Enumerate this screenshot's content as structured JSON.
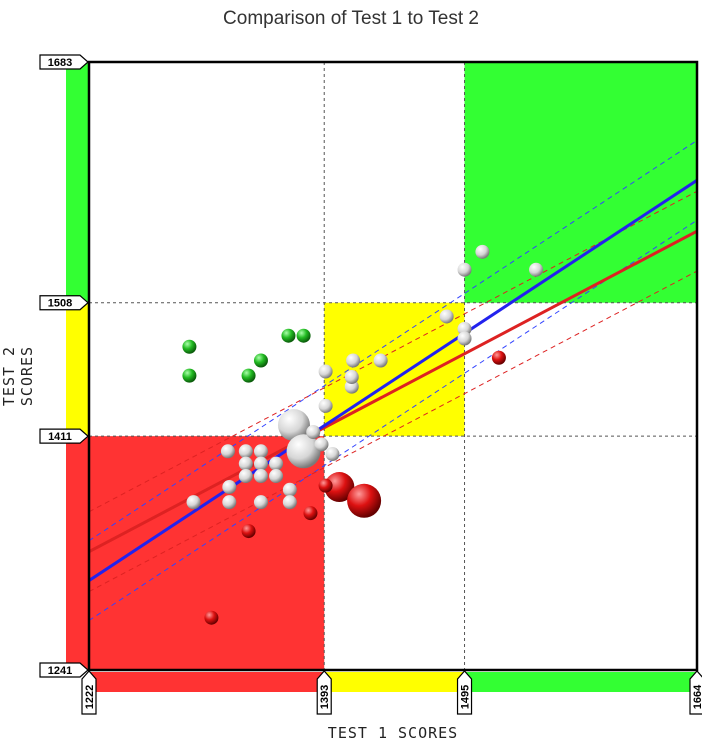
{
  "chart_data": {
    "type": "scatter",
    "title": "Comparison of Test 1 to Test 2",
    "xlabel": "TEST 1 SCORES",
    "ylabel": "TEST 2 SCORES",
    "xlim": [
      1222,
      1664
    ],
    "ylim": [
      1241,
      1683
    ],
    "x_ticks": [
      1222,
      1393,
      1495,
      1664
    ],
    "y_ticks": [
      1241,
      1411,
      1508,
      1683
    ],
    "grid": "dashed at thresholds",
    "zones": [
      {
        "x": [
          1222,
          1393
        ],
        "y": [
          1241,
          1411
        ],
        "color": "#ff3333"
      },
      {
        "x": [
          1393,
          1495
        ],
        "y": [
          1411,
          1508
        ],
        "color": "#ffff00"
      },
      {
        "x": [
          1495,
          1664
        ],
        "y": [
          1508,
          1683
        ],
        "color": "#33ff33"
      }
    ],
    "x_band": [
      {
        "x": [
          1222,
          1393
        ],
        "color": "#ff3333"
      },
      {
        "x": [
          1393,
          1495
        ],
        "color": "#ffff00"
      },
      {
        "x": [
          1495,
          1664
        ],
        "color": "#33ff33"
      }
    ],
    "y_band": [
      {
        "y": [
          1241,
          1411
        ],
        "color": "#ff3333"
      },
      {
        "y": [
          1411,
          1508
        ],
        "color": "#ffff00"
      },
      {
        "y": [
          1508,
          1683
        ],
        "color": "#33ff33"
      }
    ],
    "trend_lines": [
      {
        "color": "#2222ee",
        "x": [
          1222,
          1664
        ],
        "y": [
          1306,
          1597
        ]
      },
      {
        "color": "#dd2222",
        "x": [
          1222,
          1664
        ],
        "y": [
          1327,
          1560
        ]
      }
    ],
    "confidence_bands": [
      {
        "color": "#3344ff",
        "offset": 29
      },
      {
        "color": "#dd2222",
        "offset": 29
      }
    ],
    "points": [
      {
        "x": 1295,
        "y": 1476,
        "r": 7,
        "c": "green"
      },
      {
        "x": 1295,
        "y": 1455,
        "r": 7,
        "c": "green"
      },
      {
        "x": 1338,
        "y": 1455,
        "r": 7,
        "c": "green"
      },
      {
        "x": 1347,
        "y": 1466,
        "r": 7,
        "c": "green"
      },
      {
        "x": 1367,
        "y": 1484,
        "r": 7,
        "c": "green"
      },
      {
        "x": 1378,
        "y": 1484,
        "r": 7,
        "c": "green"
      },
      {
        "x": 1394,
        "y": 1458,
        "r": 7,
        "c": "white"
      },
      {
        "x": 1414,
        "y": 1466,
        "r": 7,
        "c": "white"
      },
      {
        "x": 1434,
        "y": 1466,
        "r": 7,
        "c": "white"
      },
      {
        "x": 1413,
        "y": 1447,
        "r": 7,
        "c": "white"
      },
      {
        "x": 1413,
        "y": 1454,
        "r": 7,
        "c": "white"
      },
      {
        "x": 1394,
        "y": 1433,
        "r": 7,
        "c": "white"
      },
      {
        "x": 1482,
        "y": 1498,
        "r": 7,
        "c": "white"
      },
      {
        "x": 1495,
        "y": 1489,
        "r": 7,
        "c": "white"
      },
      {
        "x": 1495,
        "y": 1482,
        "r": 7,
        "c": "white"
      },
      {
        "x": 1508,
        "y": 1545,
        "r": 7,
        "c": "white"
      },
      {
        "x": 1495,
        "y": 1532,
        "r": 7,
        "c": "white"
      },
      {
        "x": 1547,
        "y": 1532,
        "r": 7,
        "c": "white"
      },
      {
        "x": 1371,
        "y": 1419,
        "r": 16,
        "c": "white"
      },
      {
        "x": 1378,
        "y": 1400,
        "r": 17,
        "c": "white"
      },
      {
        "x": 1323,
        "y": 1400,
        "r": 7,
        "c": "white"
      },
      {
        "x": 1336,
        "y": 1400,
        "r": 7,
        "c": "white"
      },
      {
        "x": 1347,
        "y": 1400,
        "r": 7,
        "c": "white"
      },
      {
        "x": 1336,
        "y": 1391,
        "r": 7,
        "c": "white"
      },
      {
        "x": 1347,
        "y": 1391,
        "r": 7,
        "c": "white"
      },
      {
        "x": 1358,
        "y": 1391,
        "r": 7,
        "c": "white"
      },
      {
        "x": 1336,
        "y": 1382,
        "r": 7,
        "c": "white"
      },
      {
        "x": 1347,
        "y": 1382,
        "r": 7,
        "c": "white"
      },
      {
        "x": 1358,
        "y": 1382,
        "r": 7,
        "c": "white"
      },
      {
        "x": 1324,
        "y": 1374,
        "r": 7,
        "c": "white"
      },
      {
        "x": 1368,
        "y": 1372,
        "r": 7,
        "c": "white"
      },
      {
        "x": 1391,
        "y": 1405,
        "r": 7,
        "c": "white"
      },
      {
        "x": 1385,
        "y": 1414,
        "r": 7,
        "c": "white"
      },
      {
        "x": 1368,
        "y": 1363,
        "r": 7,
        "c": "white"
      },
      {
        "x": 1347,
        "y": 1363,
        "r": 7,
        "c": "white"
      },
      {
        "x": 1324,
        "y": 1363,
        "r": 7,
        "c": "white"
      },
      {
        "x": 1298,
        "y": 1363,
        "r": 7,
        "c": "white"
      },
      {
        "x": 1399,
        "y": 1398,
        "r": 7,
        "c": "white"
      },
      {
        "x": 1404,
        "y": 1374,
        "r": 15,
        "c": "red"
      },
      {
        "x": 1422,
        "y": 1364,
        "r": 17,
        "c": "red"
      },
      {
        "x": 1394,
        "y": 1375,
        "r": 7,
        "c": "red"
      },
      {
        "x": 1383,
        "y": 1355,
        "r": 7,
        "c": "red"
      },
      {
        "x": 1338,
        "y": 1342,
        "r": 7,
        "c": "red"
      },
      {
        "x": 1311,
        "y": 1279,
        "r": 7,
        "c": "red"
      },
      {
        "x": 1520,
        "y": 1468,
        "r": 7,
        "c": "red"
      }
    ]
  }
}
